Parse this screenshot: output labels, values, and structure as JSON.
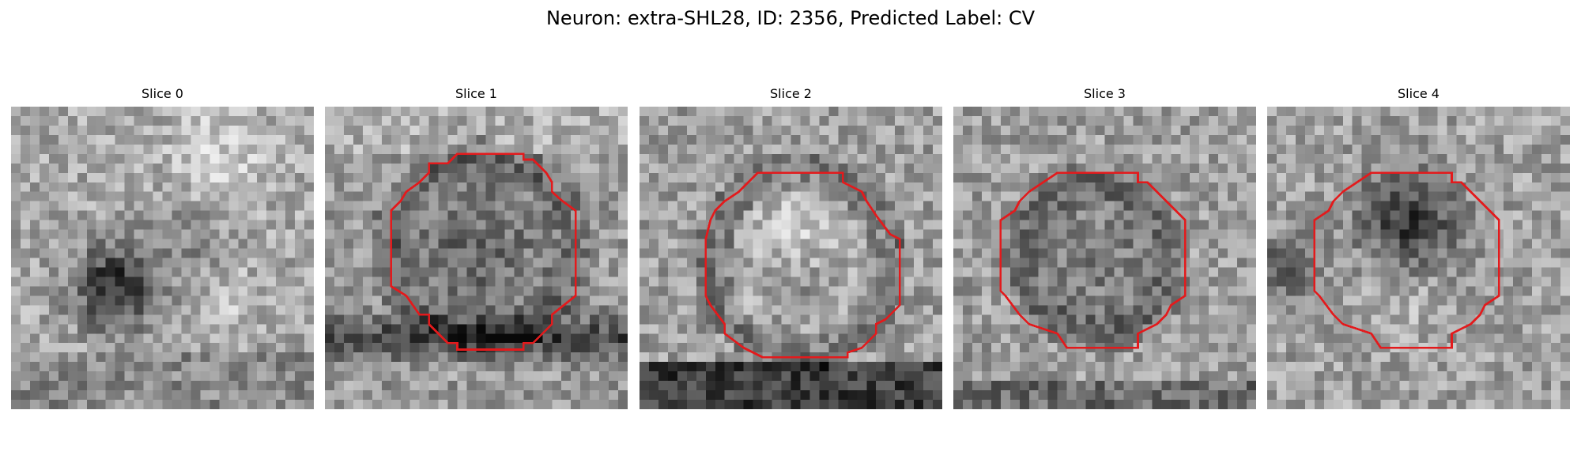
{
  "figure": {
    "title": "Neuron: extra-SHL28, ID: 2356, Predicted Label: CV",
    "contour_color": "#e31a1c",
    "colormap": "gray",
    "panels": [
      {
        "title": "Slice 0",
        "has_contour": false
      },
      {
        "title": "Slice 1",
        "has_contour": true
      },
      {
        "title": "Slice 2",
        "has_contour": true
      },
      {
        "title": "Slice 3",
        "has_contour": true
      },
      {
        "title": "Slice 4",
        "has_contour": true
      }
    ]
  }
}
